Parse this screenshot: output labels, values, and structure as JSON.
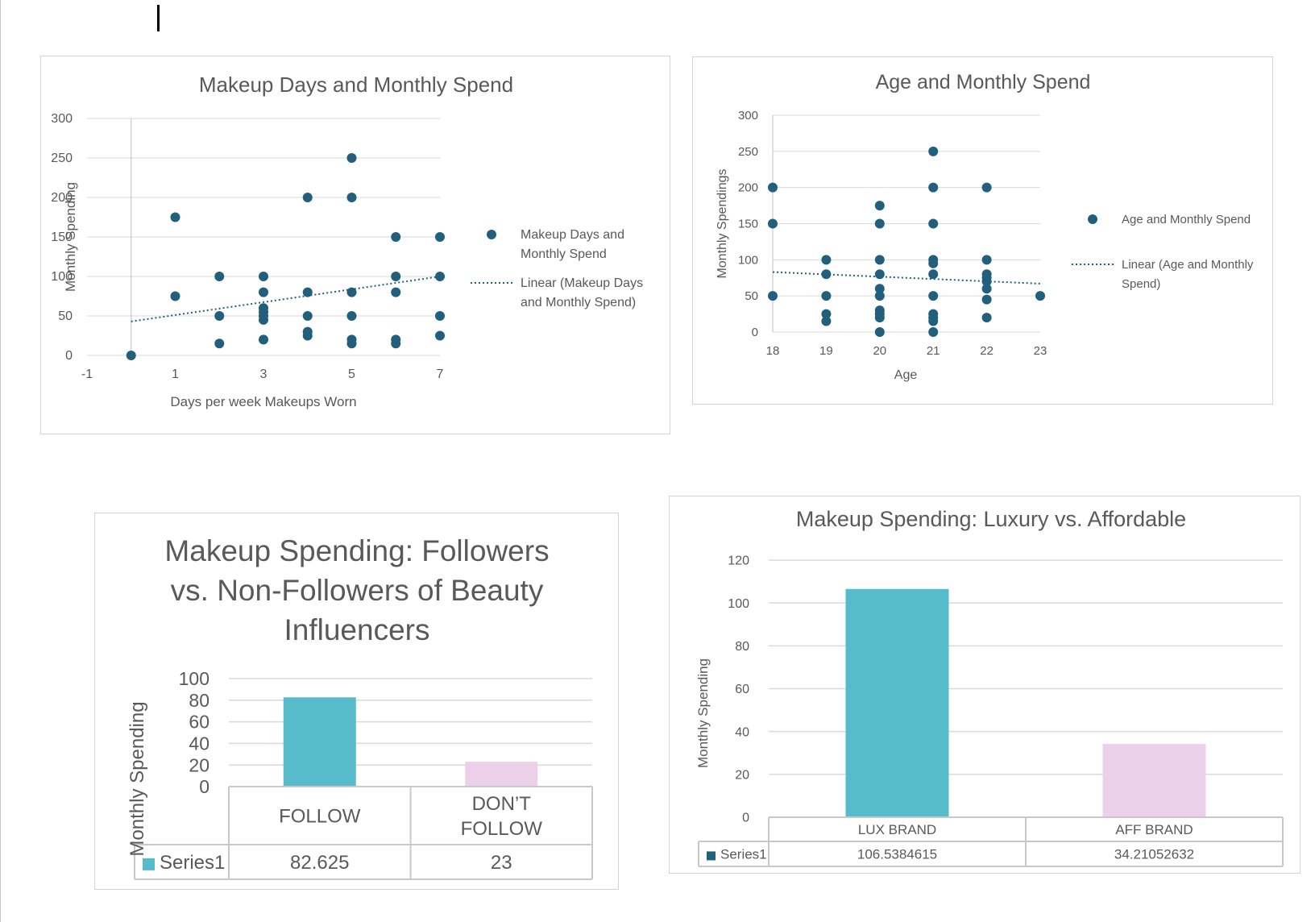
{
  "colors": {
    "scatter_marker": "#215f7d",
    "trendline": "#215f7d",
    "bar_teal": "#56bccc",
    "bar_pink": "#ecd0ea",
    "gridline": "#d9d9d9",
    "axis_line": "#bfbfbf",
    "text": "#595959"
  },
  "chart_data": [
    {
      "type": "scatter",
      "title": "Makeup Days and Monthly Spend",
      "xlabel": "Days per week Makeups Worn",
      "ylabel": "Monthly Spending",
      "xlim": [
        -1,
        7
      ],
      "ylim": [
        0,
        300
      ],
      "x_ticks": [
        "-1",
        "1",
        "3",
        "5",
        "7"
      ],
      "y_ticks": [
        "0",
        "50",
        "100",
        "150",
        "200",
        "250",
        "300"
      ],
      "legend_position": "right",
      "series": [
        {
          "name": "Makeup Days and Monthly Spend",
          "points": [
            [
              0,
              0
            ],
            [
              1,
              175
            ],
            [
              1,
              75
            ],
            [
              2,
              100
            ],
            [
              2,
              50
            ],
            [
              2,
              15
            ],
            [
              3,
              100
            ],
            [
              3,
              80
            ],
            [
              3,
              60
            ],
            [
              3,
              55
            ],
            [
              3,
              50
            ],
            [
              3,
              45
            ],
            [
              3,
              20
            ],
            [
              4,
              200
            ],
            [
              4,
              80
            ],
            [
              4,
              50
            ],
            [
              4,
              30
            ],
            [
              4,
              25
            ],
            [
              5,
              250
            ],
            [
              5,
              200
            ],
            [
              5,
              80
            ],
            [
              5,
              50
            ],
            [
              5,
              20
            ],
            [
              5,
              15
            ],
            [
              6,
              150
            ],
            [
              6,
              100
            ],
            [
              6,
              80
            ],
            [
              6,
              20
            ],
            [
              6,
              15
            ],
            [
              7,
              150
            ],
            [
              7,
              100
            ],
            [
              7,
              50
            ],
            [
              7,
              25
            ]
          ]
        }
      ],
      "trendline": {
        "name": "Linear (Makeup Days and Monthly Spend)",
        "legend_label": [
          "Linear (Makeup Days",
          "and Monthly Spend)"
        ],
        "from": [
          0,
          43
        ],
        "to": [
          7,
          100
        ]
      },
      "legend_label": [
        "Makeup Days and",
        "Monthly Spend"
      ]
    },
    {
      "type": "scatter",
      "title": "Age and Monthly Spend",
      "xlabel": "Age",
      "ylabel": "Monthly Spendings",
      "xlim": [
        18,
        23
      ],
      "ylim": [
        0,
        300
      ],
      "x_ticks": [
        "18",
        "19",
        "20",
        "21",
        "22",
        "23"
      ],
      "y_ticks": [
        "0",
        "50",
        "100",
        "150",
        "200",
        "250",
        "300"
      ],
      "legend_position": "right",
      "series": [
        {
          "name": "Age and Monthly Spend",
          "points": [
            [
              18,
              200
            ],
            [
              18,
              150
            ],
            [
              18,
              50
            ],
            [
              19,
              100
            ],
            [
              19,
              80
            ],
            [
              19,
              50
            ],
            [
              19,
              25
            ],
            [
              19,
              15
            ],
            [
              20,
              175
            ],
            [
              20,
              150
            ],
            [
              20,
              100
            ],
            [
              20,
              80
            ],
            [
              20,
              60
            ],
            [
              20,
              50
            ],
            [
              20,
              30
            ],
            [
              20,
              25
            ],
            [
              20,
              20
            ],
            [
              20,
              0
            ],
            [
              21,
              250
            ],
            [
              21,
              200
            ],
            [
              21,
              150
            ],
            [
              21,
              100
            ],
            [
              21,
              95
            ],
            [
              21,
              80
            ],
            [
              21,
              50
            ],
            [
              21,
              25
            ],
            [
              21,
              20
            ],
            [
              21,
              15
            ],
            [
              21,
              0
            ],
            [
              22,
              200
            ],
            [
              22,
              100
            ],
            [
              22,
              80
            ],
            [
              22,
              75
            ],
            [
              22,
              70
            ],
            [
              22,
              60
            ],
            [
              22,
              45
            ],
            [
              22,
              20
            ],
            [
              23,
              50
            ]
          ]
        }
      ],
      "trendline": {
        "name": "Linear (Age and Monthly Spend)",
        "legend_label": [
          "Linear (Age and Monthly",
          "Spend)"
        ],
        "from": [
          18,
          83
        ],
        "to": [
          23,
          67
        ]
      },
      "legend_label": [
        "Age and Monthly Spend"
      ]
    },
    {
      "type": "bar",
      "title": "Makeup Spending: Followers vs. Non-Followers of Beauty Influencers",
      "title_lines": [
        "Makeup Spending: Followers",
        "vs. Non-Followers of Beauty",
        "Influencers"
      ],
      "ylabel": "Monthly Spending",
      "ylim": [
        0,
        100
      ],
      "y_ticks": [
        "0",
        "20",
        "40",
        "60",
        "80",
        "100"
      ],
      "categories": [
        "FOLLOW",
        "DON’T FOLLOW"
      ],
      "category_lines": [
        [
          "FOLLOW"
        ],
        [
          "DON’T",
          "FOLLOW"
        ]
      ],
      "series": [
        {
          "name": "Series1",
          "values": [
            82.625,
            23
          ],
          "value_labels": [
            "82.625",
            "23"
          ]
        }
      ],
      "data_table": true
    },
    {
      "type": "bar",
      "title": "Makeup Spending: Luxury vs. Affordable",
      "ylabel": "Monthly Spending",
      "ylim": [
        0,
        120
      ],
      "y_ticks": [
        "0",
        "20",
        "40",
        "60",
        "80",
        "100",
        "120"
      ],
      "categories": [
        "LUX BRAND",
        "AFF BRAND"
      ],
      "series": [
        {
          "name": "Series1",
          "values": [
            106.5384615,
            34.21052632
          ],
          "value_labels": [
            "106.5384615",
            "34.21052632"
          ]
        }
      ],
      "data_table": true
    }
  ]
}
